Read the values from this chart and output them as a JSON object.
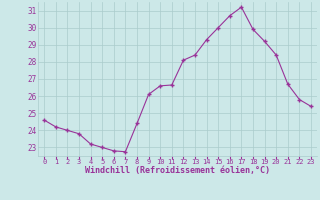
{
  "hours": [
    0,
    1,
    2,
    3,
    4,
    5,
    6,
    7,
    8,
    9,
    10,
    11,
    12,
    13,
    14,
    15,
    16,
    17,
    18,
    19,
    20,
    21,
    22,
    23
  ],
  "values": [
    24.6,
    24.2,
    24.0,
    23.8,
    23.2,
    23.0,
    22.8,
    22.75,
    24.4,
    26.1,
    26.6,
    26.65,
    28.1,
    28.4,
    29.3,
    30.0,
    30.7,
    31.2,
    29.9,
    29.2,
    28.4,
    26.7,
    25.8,
    25.4
  ],
  "line_color": "#993399",
  "marker": "+",
  "background_color": "#cce8e8",
  "grid_color": "#aacccc",
  "ylim": [
    22.5,
    31.5
  ],
  "yticks": [
    23,
    24,
    25,
    26,
    27,
    28,
    29,
    30,
    31
  ],
  "xtick_labels": [
    "0",
    "1",
    "2",
    "3",
    "4",
    "5",
    "6",
    "7",
    "8",
    "9",
    "10",
    "11",
    "12",
    "13",
    "14",
    "15",
    "16",
    "17",
    "18",
    "19",
    "20",
    "21",
    "22",
    "23"
  ],
  "xlabel": "Windchill (Refroidissement éolien,°C)",
  "label_color": "#993399",
  "tick_color": "#993399",
  "font_name": "monospace"
}
